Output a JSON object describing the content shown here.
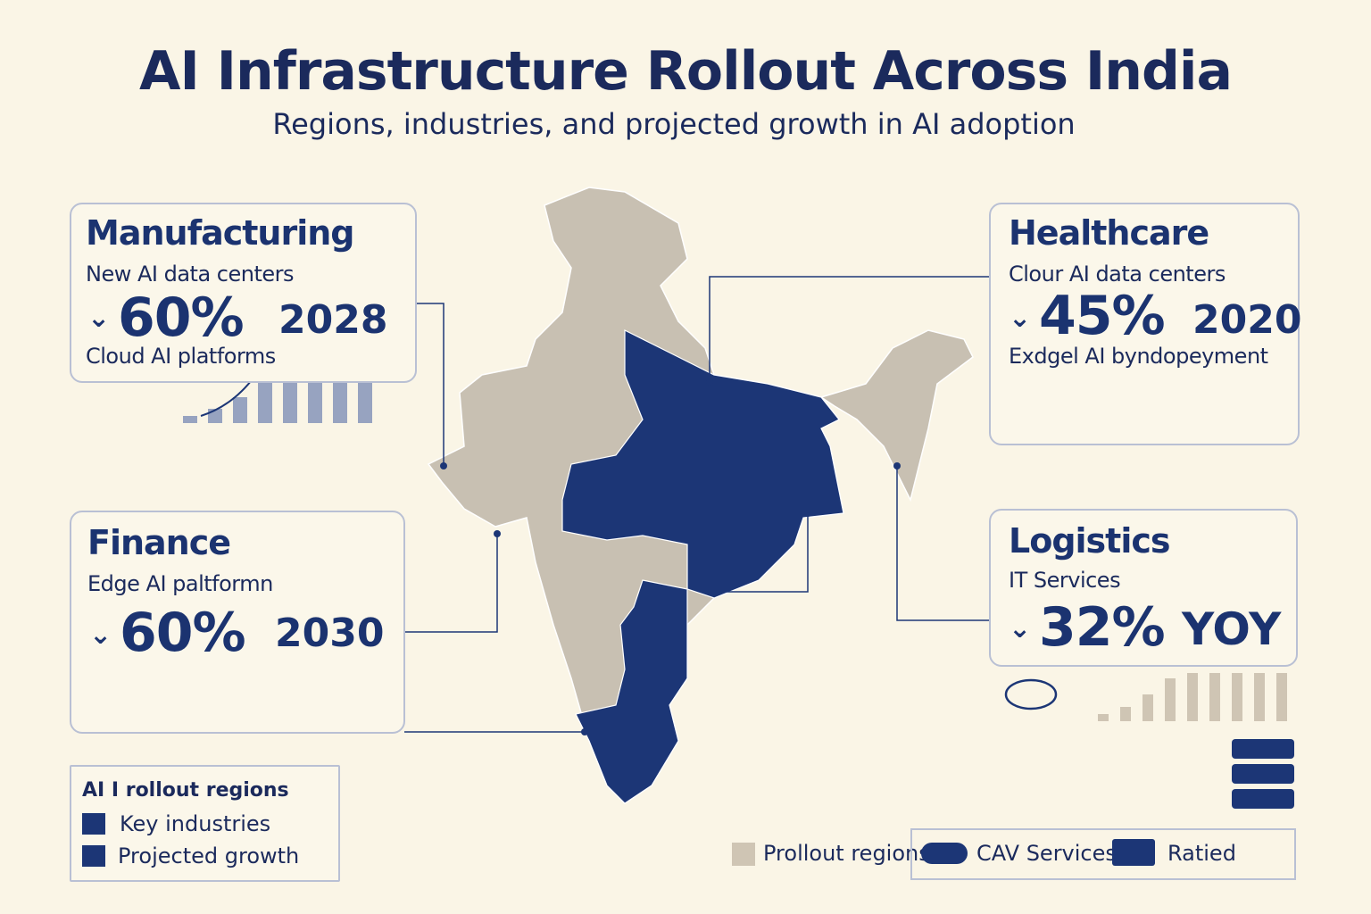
{
  "header": {
    "title": "AI Infrastructure Rollout Across India",
    "subtitle": "Regions, industries, and projected growth in AI adoption"
  },
  "cards": [
    {
      "title": "Manufacturing",
      "line1": "New AI data centers",
      "value": "60%",
      "year": "2028",
      "line2": "Cloud AI platforms"
    },
    {
      "title": "Finance",
      "line1": "Edge AI paltformn",
      "value": "60%",
      "year": "2030"
    },
    {
      "title": "Healthcare",
      "line1": "Clour AI data centers",
      "value": "45%",
      "year": "2020",
      "line2": "Exdgel AI byndopeyment"
    },
    {
      "title": "Logistics",
      "line1": "IT Services",
      "value": "32%",
      "year": "YOY"
    }
  ],
  "legend": {
    "title": "AI I rollout regions",
    "items": [
      "Key industries",
      "Projected growth"
    ]
  },
  "bottom_legend": [
    "Prollout regions",
    "CAV Services",
    "Ratied"
  ]
}
